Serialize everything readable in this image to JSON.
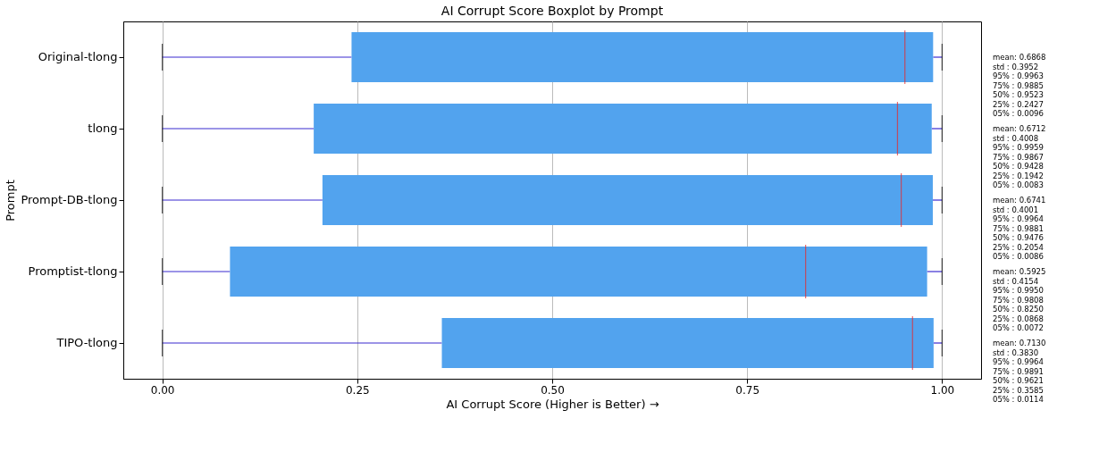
{
  "chart_data": {
    "type": "box",
    "orientation": "horizontal",
    "title": "AI Corrupt Score Boxplot by Prompt",
    "xlabel": "AI Corrupt Score (Higher is Better) →",
    "ylabel": "Prompt",
    "categories": [
      "Original-tlong",
      "tlong",
      "Prompt-DB-tlong",
      "Promptist-tlong",
      "TIPO-tlong"
    ],
    "boxes": [
      {
        "low": 0,
        "q1": 0.2427,
        "median": 0.9523,
        "q3": 0.9885,
        "high": 1
      },
      {
        "low": 0,
        "q1": 0.1942,
        "median": 0.9428,
        "q3": 0.9867,
        "high": 1
      },
      {
        "low": 0,
        "q1": 0.2054,
        "median": 0.9476,
        "q3": 0.9881,
        "high": 1
      },
      {
        "low": 0,
        "q1": 0.0868,
        "median": 0.825,
        "q3": 0.9808,
        "high": 1
      },
      {
        "low": 0,
        "q1": 0.3585,
        "median": 0.9621,
        "q3": 0.9891,
        "high": 1
      }
    ],
    "color": "#52a3ee",
    "xlim": [
      -0.05,
      1.05
    ],
    "xticks": [
      {
        "value": 0,
        "label": "0.00"
      },
      {
        "value": 0.25,
        "label": "0.25"
      },
      {
        "value": 0.5,
        "label": "0.50"
      },
      {
        "value": 0.75,
        "label": "0.75"
      },
      {
        "value": 1,
        "label": "1.00"
      }
    ],
    "grid": "x",
    "annotations": [
      "mean: 0.6868\nstd : 0.3952\n95% : 0.9963\n75% : 0.9885\n50% : 0.9523\n25% : 0.2427\n05% : 0.0096",
      "mean: 0.6712\nstd : 0.4008\n95% : 0.9959\n75% : 0.9867\n50% : 0.9428\n25% : 0.1942\n05% : 0.0083",
      "mean: 0.6741\nstd : 0.4001\n95% : 0.9964\n75% : 0.9881\n50% : 0.9476\n25% : 0.2054\n05% : 0.0086",
      "mean: 0.5925\nstd : 0.4154\n95% : 0.9950\n75% : 0.9808\n50% : 0.8250\n25% : 0.0868\n05% : 0.0072",
      "mean: 0.7130\nstd : 0.3830\n95% : 0.9964\n75% : 0.9891\n50% : 0.9621\n25% : 0.3585\n05% : 0.0114"
    ]
  }
}
